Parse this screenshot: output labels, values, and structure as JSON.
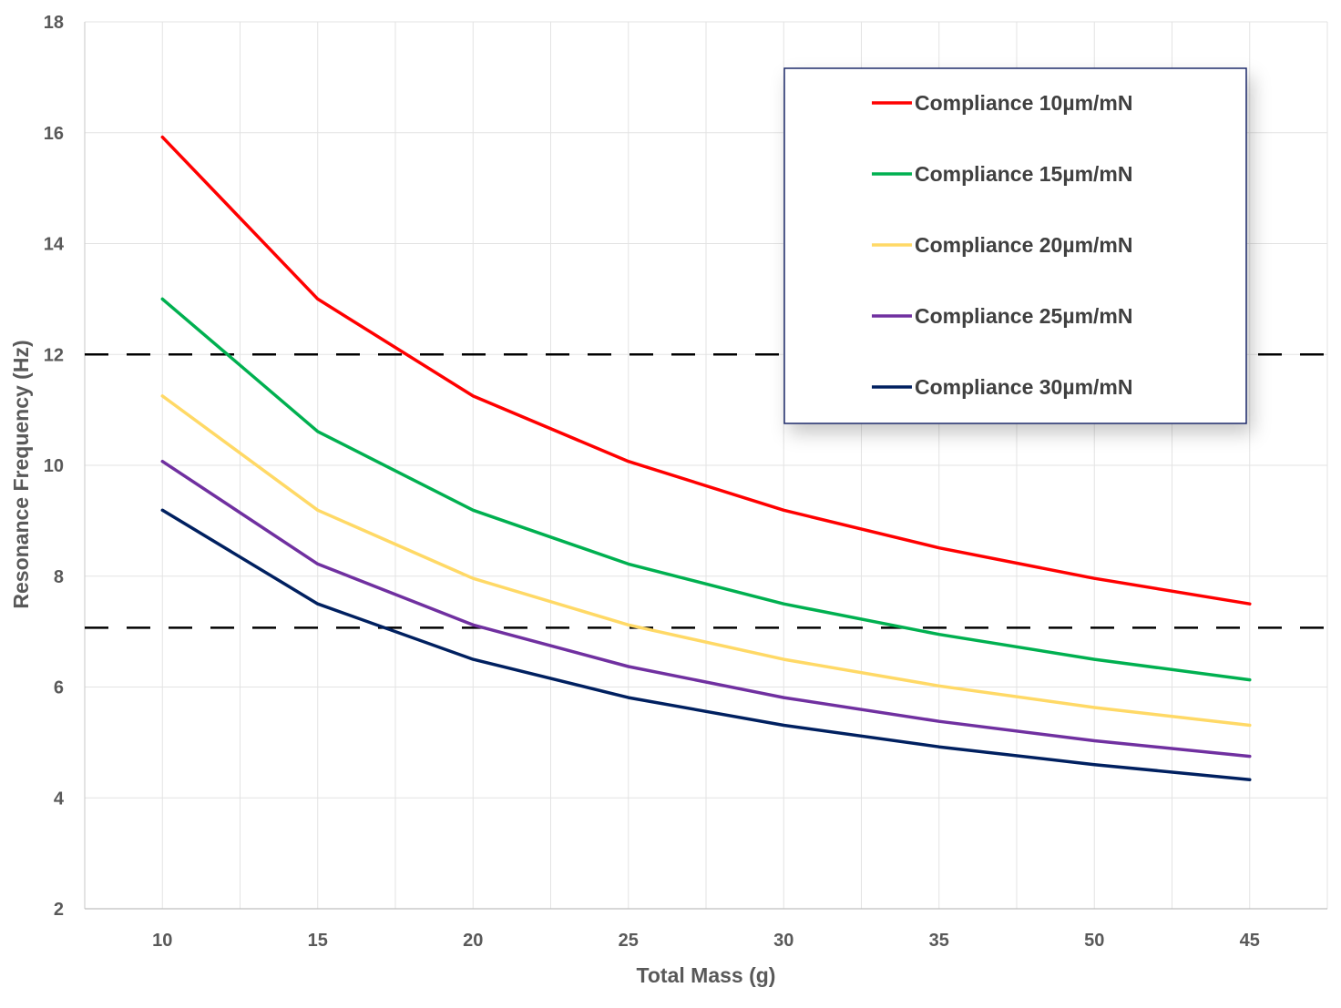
{
  "chart_data": {
    "type": "line",
    "title": "",
    "xlabel": "Total Mass (g)",
    "ylabel": "Resonance Frequency (Hz)",
    "categories": [
      "10",
      "15",
      "20",
      "25",
      "30",
      "35",
      "50",
      "45"
    ],
    "ylim": [
      2,
      18
    ],
    "yticks": [
      2,
      4,
      6,
      8,
      10,
      12,
      14,
      16,
      18
    ],
    "grid": true,
    "legend_position": "top-right",
    "series": [
      {
        "name": "Compliance 10µm/mN",
        "color": "#ff0000",
        "values": [
          15.92,
          13.0,
          11.25,
          10.07,
          9.19,
          8.51,
          7.96,
          7.5
        ]
      },
      {
        "name": "Compliance 15µm/mN",
        "color": "#00b050",
        "values": [
          13.0,
          10.61,
          9.19,
          8.22,
          7.5,
          6.95,
          6.5,
          6.13
        ]
      },
      {
        "name": "Compliance 20µm/mN",
        "color": "#ffd966",
        "values": [
          11.25,
          9.19,
          7.96,
          7.12,
          6.5,
          6.02,
          5.63,
          5.31
        ]
      },
      {
        "name": "Compliance 25µm/mN",
        "color": "#7030a0",
        "values": [
          10.07,
          8.22,
          7.12,
          6.37,
          5.81,
          5.38,
          5.03,
          4.75
        ]
      },
      {
        "name": "Compliance 30µm/mN",
        "color": "#002060",
        "values": [
          9.19,
          7.5,
          6.5,
          5.81,
          5.31,
          4.92,
          4.6,
          4.33
        ]
      }
    ],
    "reference_lines": [
      {
        "y": 12,
        "style": "dashed",
        "color": "#000000"
      },
      {
        "y": 7.07,
        "style": "dashed",
        "color": "#000000"
      }
    ]
  }
}
